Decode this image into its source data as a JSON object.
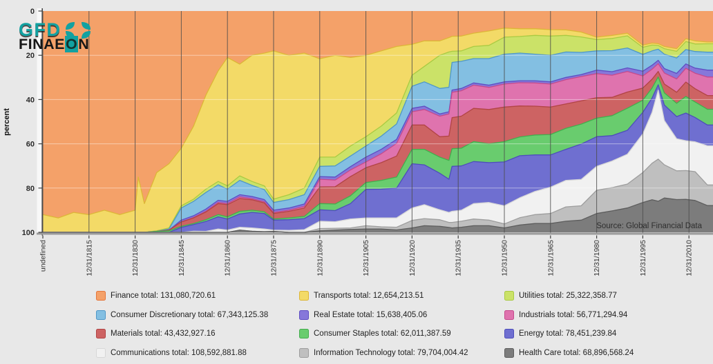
{
  "page": {
    "background": "#e8e8e8"
  },
  "logo": {
    "gfd": "GFD",
    "finaeon_pre": "FINAE",
    "finaeon_o": "O",
    "finaeon_post": "N",
    "teal": "#12A1A1",
    "black": "#161616"
  },
  "chart_data": {
    "type": "area",
    "stacked": true,
    "percent_stacked": true,
    "y_inverted": true,
    "title": "",
    "xlabel": "",
    "ylabel": "percent",
    "ylim": [
      0,
      100
    ],
    "y_ticks": [
      0,
      20,
      40,
      60,
      80,
      100
    ],
    "x_tick_labels": [
      "undefined",
      "12/31/1815",
      "12/31/1830",
      "12/31/1845",
      "12/31/1860",
      "12/31/1875",
      "12/31/1890",
      "12/31/1905",
      "12/31/1920",
      "12/31/1935",
      "12/31/1950",
      "12/31/1965",
      "12/31/1980",
      "12/31/1995",
      "12/31/2010"
    ],
    "x_tick_years": [
      1800,
      1815,
      1830,
      1845,
      1860,
      1875,
      1890,
      1905,
      1920,
      1935,
      1950,
      1965,
      1980,
      1995,
      2010
    ],
    "x_range": [
      1800,
      2018
    ],
    "grid_vertical": true,
    "grid_horizontal": true,
    "legend_position": "bottom",
    "source_note": "Source: Global Financial Data",
    "years": [
      1800,
      1805,
      1810,
      1815,
      1820,
      1825,
      1830,
      1831,
      1833,
      1837,
      1841,
      1845,
      1849,
      1853,
      1857,
      1860,
      1864,
      1868,
      1872,
      1875,
      1880,
      1885,
      1890,
      1895,
      1900,
      1905,
      1910,
      1915,
      1920,
      1924,
      1929,
      1932,
      1933,
      1936,
      1940,
      1945,
      1950,
      1955,
      1960,
      1965,
      1970,
      1975,
      1980,
      1985,
      1990,
      1995,
      1998,
      2000,
      2002,
      2006,
      2009,
      2012,
      2016,
      2018
    ],
    "series": [
      {
        "name": "Finance",
        "legend_label": "Finance total: 131,080,720.61",
        "fill": "#f4a169",
        "stroke": "#e4763b",
        "values": [
          92,
          93.5,
          91,
          92,
          90,
          92,
          90,
          75,
          87,
          73,
          69,
          62,
          52,
          38,
          27,
          21,
          24,
          20,
          19,
          18,
          20,
          19,
          21.6,
          20,
          21,
          20,
          18,
          16,
          15,
          13.5,
          13.5,
          12,
          11.4,
          11.3,
          10,
          9,
          7.7,
          8,
          8,
          8.4,
          8.5,
          9.5,
          11.8,
          11,
          10,
          15.4,
          14.5,
          14.7,
          16,
          17,
          12.5,
          13.5,
          14,
          14
        ]
      },
      {
        "name": "Transports",
        "legend_label": "Transports total: 12,654,213.51",
        "fill": "#f3da67",
        "stroke": "#ddb637",
        "values": [
          8,
          6.5,
          9,
          8,
          10,
          8,
          10,
          25,
          13,
          26.3,
          29,
          26,
          33,
          42.5,
          50,
          58,
          50.5,
          57,
          60,
          67,
          63,
          61,
          44.4,
          46,
          40,
          36.8,
          34,
          30,
          14,
          11.5,
          6.5,
          6.5,
          6.8,
          6.7,
          6,
          6.5,
          4.1,
          3.5,
          3,
          2.9,
          2.5,
          2.2,
          1.1,
          1.4,
          1.2,
          1,
          0.9,
          0.8,
          1,
          1.2,
          1.3,
          1.4,
          0.8,
          0.8
        ]
      },
      {
        "name": "Utilities",
        "legend_label": "Utilities total: 25,322,358.77",
        "fill": "#cbe268",
        "stroke": "#a9ca42",
        "values": [
          0,
          0,
          0,
          0,
          0,
          0,
          0,
          0,
          0,
          0.3,
          0.5,
          1,
          1,
          1.5,
          1.5,
          1.5,
          2,
          1.8,
          1.7,
          1.5,
          2.2,
          3,
          4.2,
          4,
          4.5,
          4.2,
          4.5,
          5,
          5,
          7,
          15,
          16,
          5,
          4.7,
          5.5,
          6,
          7.7,
          7.5,
          8.5,
          8.7,
          7.5,
          7,
          5.1,
          5.5,
          5.5,
          3.2,
          2.6,
          1.7,
          2.5,
          3,
          3.6,
          3.4,
          3.8,
          3.8
        ]
      },
      {
        "name": "Consumer Discretionary",
        "legend_label": "Consumer Discretionary total: 67,343,125.38",
        "fill": "#83bfe2",
        "stroke": "#4f97c7",
        "values": [
          0,
          0,
          0,
          0,
          0,
          0,
          0,
          0,
          0,
          0,
          0.5,
          5.5,
          6.5,
          7.5,
          7,
          5.5,
          6.5,
          5,
          4.5,
          3.5,
          3.8,
          4.2,
          4.6,
          5,
          4.8,
          5,
          6,
          7,
          10,
          11,
          11.5,
          11,
          12.5,
          12.3,
          11,
          12,
          12.5,
          12.5,
          12,
          12,
          11.5,
          10,
          8.7,
          9.5,
          9,
          7.6,
          6.5,
          5,
          6.5,
          7,
          6.5,
          7.5,
          8.1,
          8.1
        ]
      },
      {
        "name": "Real Estate",
        "legend_label": "Real Estate total: 15,638,405.06",
        "fill": "#8677da",
        "stroke": "#5e4dc2",
        "values": [
          0,
          0,
          0,
          0,
          0,
          0,
          0,
          0,
          0,
          0,
          0,
          0.8,
          0.8,
          1,
          1,
          1,
          1,
          1,
          1,
          1,
          1,
          1.1,
          1.2,
          1.4,
          1.5,
          2.2,
          2,
          1.8,
          1.5,
          1.5,
          1,
          1,
          1,
          1,
          1,
          1,
          1,
          0.9,
          1,
          1,
          1,
          0.9,
          1.6,
          1.6,
          1.6,
          2.1,
          1.8,
          1.5,
          2,
          2.5,
          2,
          2.3,
          3.1,
          3.1
        ]
      },
      {
        "name": "Industrials",
        "legend_label": "Industrials total: 56,771,294.94",
        "fill": "#df73ae",
        "stroke": "#c54a8c",
        "values": [
          0,
          0,
          0,
          0,
          0,
          0,
          0,
          0,
          0,
          0,
          0,
          0,
          0.2,
          0.3,
          0.5,
          0.5,
          0.7,
          0.5,
          0.5,
          0.5,
          0.5,
          0.7,
          3.5,
          3,
          3,
          2.6,
          4,
          5.7,
          6,
          7,
          9.3,
          10,
          11.5,
          11.5,
          10.5,
          10,
          10.4,
          10.5,
          10.5,
          10.4,
          11,
          11,
          10.9,
          10,
          9.3,
          5.5,
          4.5,
          3.5,
          5,
          6,
          6.2,
          7,
          8.4,
          8.4
        ]
      },
      {
        "name": "Materials",
        "legend_label": "Materials total: 43,432,927.16",
        "fill": "#cd6363",
        "stroke": "#b14444",
        "values": [
          0,
          0,
          0,
          0,
          0,
          0,
          0,
          0,
          0,
          0,
          0.3,
          2,
          2.5,
          3.5,
          5,
          5.5,
          5.8,
          4.7,
          4,
          2.5,
          3,
          3.8,
          7.5,
          7.8,
          8.7,
          6.7,
          8,
          9.5,
          11,
          11,
          9.2,
          11,
          14,
          14.5,
          15,
          15.5,
          15.6,
          14,
          13,
          12.4,
          11,
          10.5,
          9.2,
          8.3,
          7.3,
          5.5,
          4,
          2.5,
          4,
          5,
          6.5,
          6,
          6.2,
          6.2
        ]
      },
      {
        "name": "Consumer Staples",
        "legend_label": "Consumer Staples total: 62,011,387.59",
        "fill": "#69cc6e",
        "stroke": "#43ad4d",
        "values": [
          0,
          0,
          0,
          0,
          0,
          0,
          0,
          0,
          0,
          0.4,
          0.7,
          0.5,
          0.5,
          0.8,
          1,
          1,
          1.2,
          1,
          0.8,
          0.5,
          0.8,
          1,
          2.8,
          3,
          3.5,
          3.1,
          4,
          5,
          6.5,
          7,
          7.3,
          8.5,
          8,
          8,
          9,
          8.5,
          9.2,
          8.5,
          9,
          9.2,
          9.5,
          9,
          8.4,
          9,
          10,
          5.5,
          4.5,
          3.5,
          5.5,
          6,
          7.5,
          7,
          7.1,
          7.1
        ]
      },
      {
        "name": "Energy",
        "legend_label": "Energy total: 78,451,239.84",
        "fill": "#6f6fd0",
        "stroke": "#4d4dbb",
        "values": [
          0,
          0,
          0,
          0,
          0,
          0,
          0,
          0,
          0,
          0,
          0,
          2.2,
          3,
          4.5,
          5.5,
          5,
          6,
          7,
          7,
          4.5,
          4.8,
          5,
          5.2,
          5,
          7,
          12.9,
          13,
          13.5,
          20,
          18,
          16.5,
          15,
          20.3,
          20,
          19,
          18,
          19.8,
          19,
          16.5,
          14.6,
          14,
          16,
          13.4,
          11.5,
          10.8,
          9.7,
          6.5,
          2.5,
          7,
          10,
          12.5,
          11,
          9.4,
          9.4
        ]
      },
      {
        "name": "Communications",
        "legend_label": "Communications total: 108,592,881.88",
        "fill": "#f1f1f1",
        "stroke": "#d7d7d7",
        "values": [
          0,
          0,
          0,
          0,
          0,
          0,
          0,
          0,
          0,
          0,
          0,
          0,
          0.5,
          0.4,
          1.5,
          1,
          1.3,
          1.5,
          1.2,
          0.6,
          0.9,
          1.2,
          3.3,
          3,
          4,
          3.5,
          4,
          4.2,
          5.6,
          6.3,
          4.5,
          4.5,
          5,
          5,
          7,
          8,
          8.2,
          9,
          10.5,
          11.9,
          12,
          11.9,
          10.8,
          12,
          13.5,
          17.5,
          23,
          31,
          20,
          14.5,
          13.5,
          13.5,
          17.7,
          17.7
        ]
      },
      {
        "name": "Information Technology",
        "legend_label": "Information Technology total: 79,704,004.42",
        "fill": "#bfbfbf",
        "stroke": "#9d9d9d",
        "values": [
          0,
          0,
          0,
          0,
          0,
          0,
          0,
          0,
          0,
          0,
          0,
          0,
          0,
          0,
          0,
          0,
          0,
          0,
          0,
          0,
          0,
          0,
          1,
          0.8,
          0.7,
          1.5,
          1,
          1.2,
          3.4,
          3.2,
          3,
          2.3,
          2.5,
          2.7,
          3,
          2.5,
          1.8,
          3.3,
          4,
          4.5,
          6.5,
          6.5,
          10.5,
          10.5,
          10.8,
          13.5,
          16.5,
          19,
          15,
          13,
          13,
          13,
          9.3,
          9.3
        ]
      },
      {
        "name": "Health Care",
        "legend_label": "Health Care total: 68,896,568.24",
        "fill": "#7c7c7c",
        "stroke": "#5c5c5c",
        "values": [
          0,
          0,
          0,
          0,
          0,
          0,
          0,
          0,
          0,
          0,
          0,
          0,
          0,
          0,
          0,
          0,
          1,
          0.5,
          0.3,
          0.4,
          0,
          0,
          0.7,
          1,
          1.3,
          1.5,
          1.5,
          1.1,
          2,
          3,
          2.7,
          2.2,
          2,
          2.3,
          3,
          3,
          2,
          3.3,
          4,
          4,
          5,
          5.5,
          8.5,
          9.7,
          11,
          13.5,
          14.7,
          14,
          15.5,
          14.8,
          14.9,
          14.4,
          12.1,
          12.1
        ]
      }
    ]
  }
}
